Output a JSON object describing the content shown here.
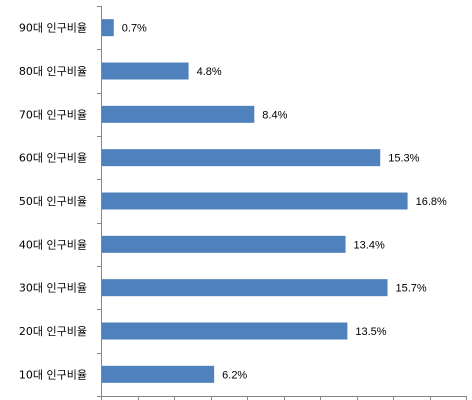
{
  "chart_data": {
    "type": "bar",
    "orientation": "horizontal",
    "categories": [
      "90대 인구비율",
      "80대 인구비율",
      "70대 인구비율",
      "60대 인구비율",
      "50대 인구비율",
      "40대 인구비율",
      "30대 인구비율",
      "20대 인구비율",
      "10대 인구비율"
    ],
    "values": [
      0.7,
      4.8,
      8.4,
      15.3,
      16.8,
      13.4,
      15.7,
      13.5,
      6.2
    ],
    "value_labels": [
      "0.7%",
      "4.8%",
      "8.4%",
      "15.3%",
      "16.8%",
      "13.4%",
      "15.7%",
      "13.5%",
      "6.2%"
    ],
    "title": "",
    "xlabel": "",
    "ylabel": "",
    "xlim": [
      0,
      20
    ],
    "x_tick_count": 11,
    "grid": false,
    "legend": "none",
    "bar_color": "#4f81bd",
    "axis_color": "#868686"
  }
}
